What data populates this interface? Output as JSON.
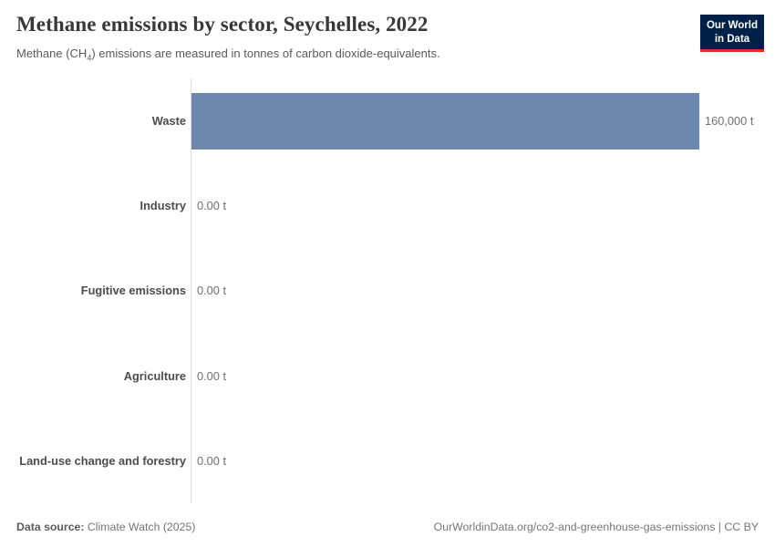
{
  "header": {
    "title": "Methane emissions by sector, Seychelles, 2022",
    "subtitle_pre": "Methane (CH",
    "subtitle_sub": "4",
    "subtitle_post": ") emissions are measured in tonnes of carbon dioxide-equivalents."
  },
  "logo": {
    "line1": "Our World",
    "line2": "in Data",
    "bg_color": "#002147",
    "accent_color": "#dc3023"
  },
  "chart_data": {
    "type": "bar",
    "orientation": "horizontal",
    "title": "Methane emissions by sector, Seychelles, 2022",
    "subtitle": "Methane (CH4) emissions are measured in tonnes of carbon dioxide-equivalents.",
    "categories": [
      "Waste",
      "Industry",
      "Fugitive emissions",
      "Agriculture",
      "Land-use change and forestry"
    ],
    "values": [
      160000,
      0,
      0,
      0,
      0
    ],
    "value_labels": [
      "160,000 t",
      "0.00 t",
      "0.00 t",
      "0.00 t",
      "0.00 t"
    ],
    "unit": "t",
    "xlim": [
      0,
      160000
    ],
    "bar_color": "#6d87af",
    "axis_line_color": "#dedede",
    "legend": "none",
    "grid": "off"
  },
  "footer": {
    "source_label": "Data source:",
    "source_value": "Climate Watch (2025)",
    "link_text": "OurWorldinData.org/co2-and-greenhouse-gas-emissions | CC BY"
  }
}
